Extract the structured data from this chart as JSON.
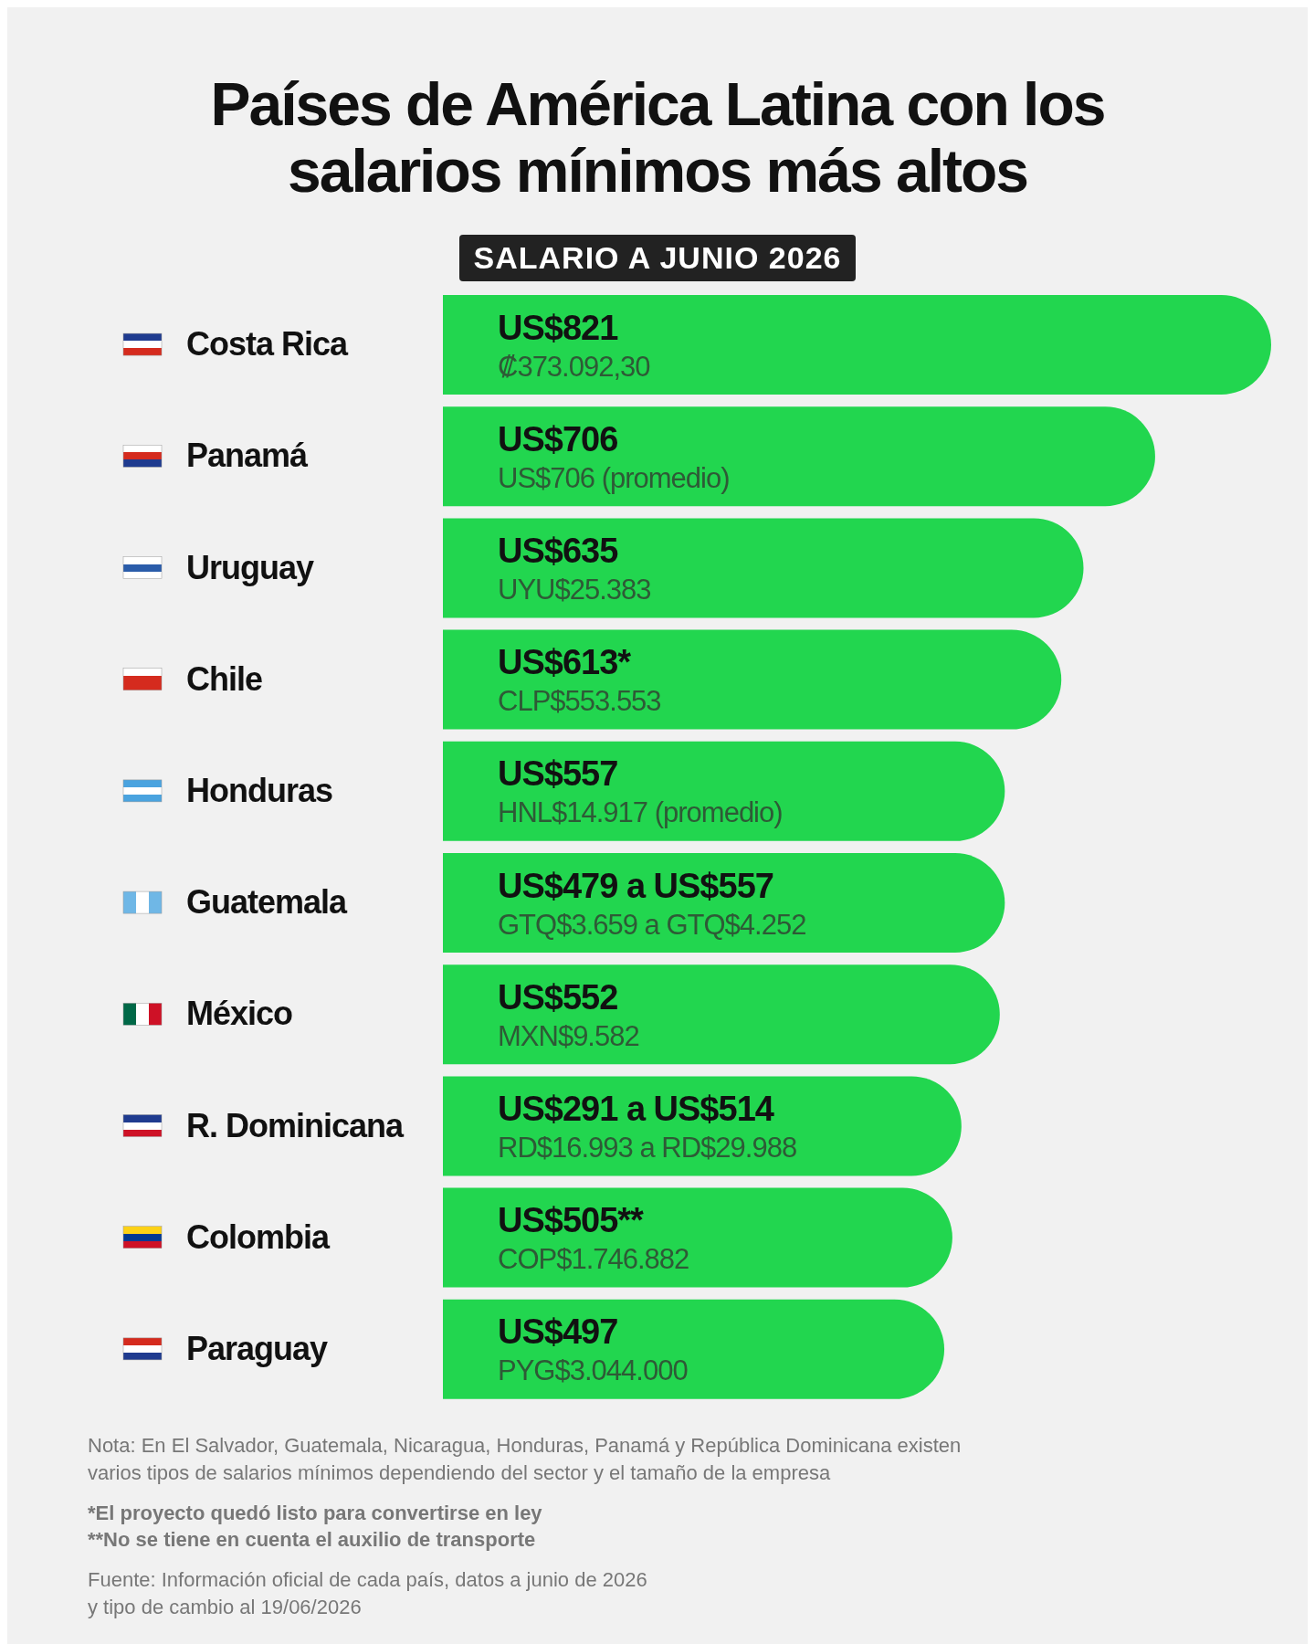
{
  "chart_data": {
    "type": "bar",
    "orientation": "horizontal",
    "title": "Países de América Latina con los salarios mínimos más altos",
    "subtitle": "SALARIO A JUNIO 2026",
    "categories": [
      "Costa Rica",
      "Panamá",
      "Uruguay",
      "Chile",
      "Honduras",
      "Guatemala",
      "México",
      "R. Dominicana",
      "Colombia",
      "Paraguay"
    ],
    "values": [
      821,
      706,
      635,
      613,
      557,
      557,
      552,
      514,
      505,
      497
    ],
    "value_labels": [
      "US$821\n₡373.092,30",
      "US$706\nUS$706 (promedio)",
      "US$635\nUYU$25.383",
      "US$613*\nCLP$553.553",
      "US$557\nHNL$14.917 (promedio)",
      "US$479 a US$557\nGTQ$3.659 a GTQ$4.252",
      "US$552\nMXN$9.582",
      "US$291 a US$514\nRD$16.993 a RD$29.988",
      "US$505**\nCOP$1.746.882",
      "US$497\nPYG$3.044.000"
    ],
    "color": "#22d64f",
    "annotations": [
      "Nota: En El Salvador, Guatemala, Nicaragua, Honduras, Panamá y República Dominicana existen varios tipos de salarios mínimos dependiendo del sector y el tamaño de la empresa",
      "*El proyecto quedó listo para convertirse en ley\n**No se tiene en cuenta el auxilio de transporte",
      "Fuente: Información oficial de cada país, datos a junio de 2026\ny tipo de cambio al 19/06/2026"
    ]
  }
}
